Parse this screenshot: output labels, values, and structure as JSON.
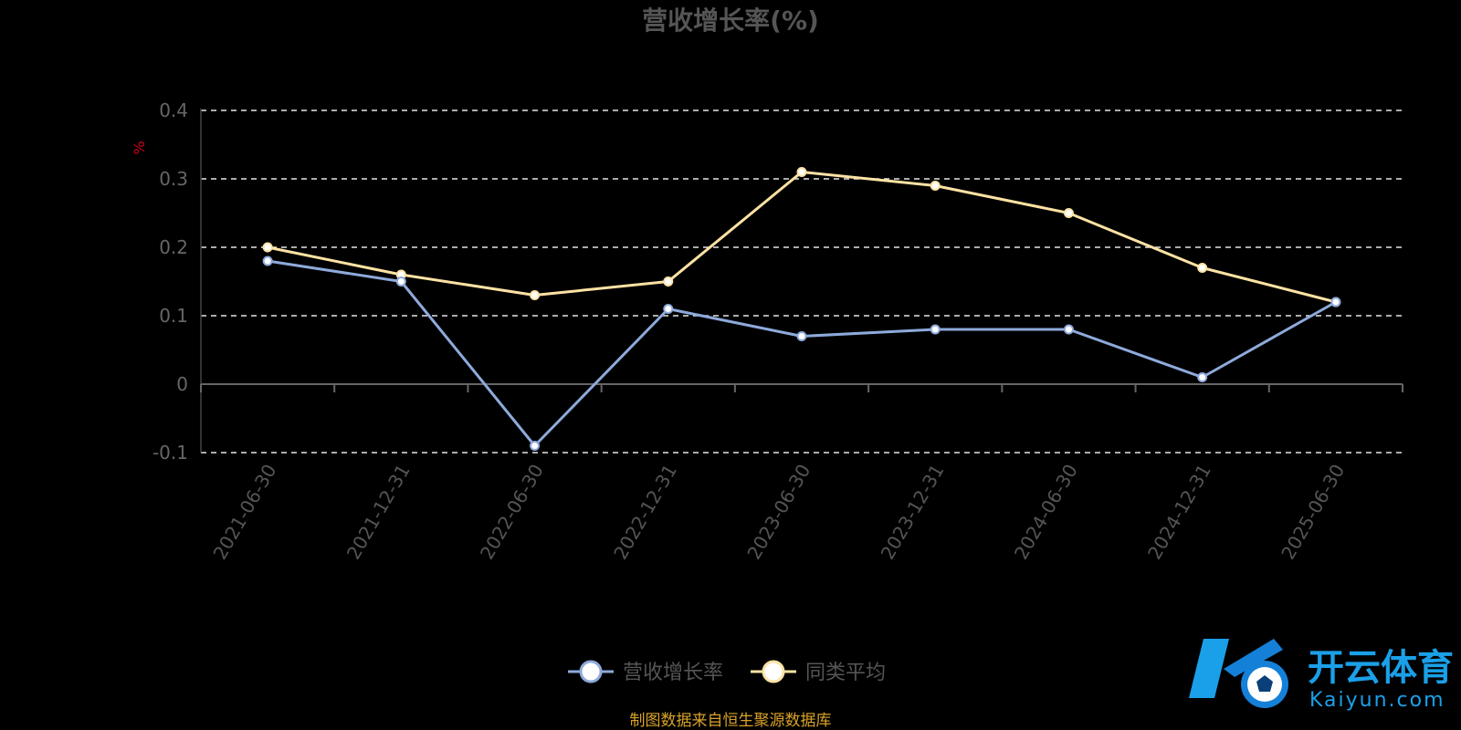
{
  "chart_data": {
    "type": "line",
    "title": "营收增长率(%)",
    "ylabel": "%",
    "ylim": [
      -0.1,
      0.4
    ],
    "yticks": [
      "0.4",
      "0.3",
      "0.2",
      "0.1",
      "0",
      "-0.1"
    ],
    "grid": true,
    "legend_position": "bottom",
    "x": [
      "2021-06-30",
      "2021-12-31",
      "2022-06-30",
      "2022-12-31",
      "2023-06-30",
      "2023-12-31",
      "2024-06-30",
      "2024-12-31",
      "2025-06-30"
    ],
    "series": [
      {
        "name": "营收增长率",
        "color": "#8eaadb",
        "values": [
          0.18,
          0.15,
          -0.09,
          0.11,
          0.07,
          0.08,
          0.08,
          0.01,
          0.12
        ]
      },
      {
        "name": "同类平均",
        "color": "#fde2a4",
        "values": [
          0.2,
          0.16,
          0.13,
          0.15,
          0.31,
          0.29,
          0.25,
          0.17,
          0.12
        ]
      }
    ]
  },
  "source_note": "制图数据来自恒生聚源数据库",
  "logo": {
    "text": "开云体育",
    "sub": "Kaiyun.com"
  }
}
